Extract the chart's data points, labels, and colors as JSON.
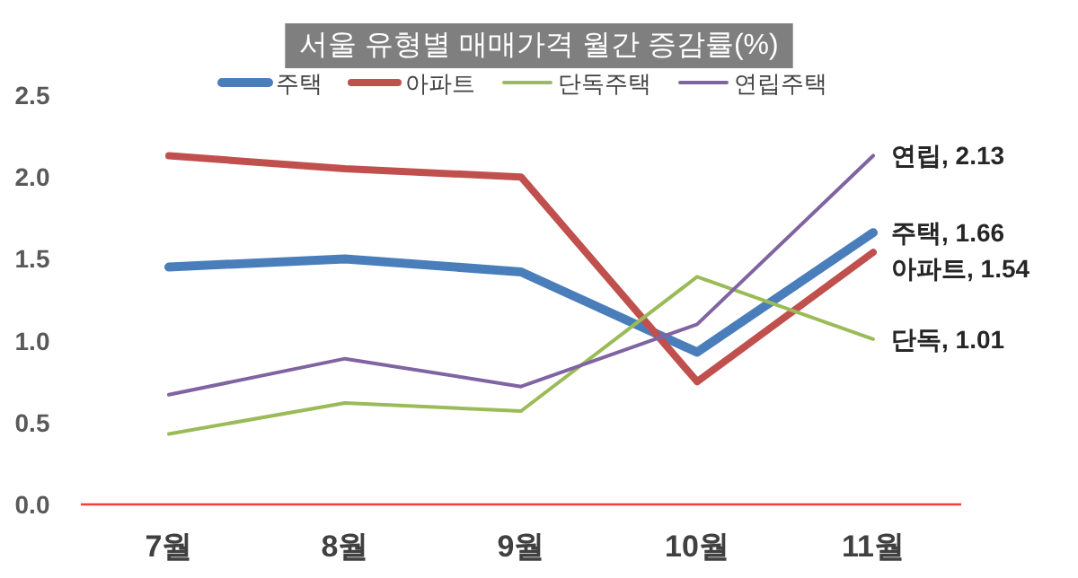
{
  "chart_data": {
    "type": "line",
    "title": "서울 유형별 매매가격 월간 증감률(%)",
    "categories": [
      "7월",
      "8월",
      "9월",
      "10월",
      "11월"
    ],
    "ylim": [
      0,
      2.5
    ],
    "yticks": [
      {
        "value": 0,
        "label": "0.0"
      },
      {
        "value": 0.5,
        "label": "0.5"
      },
      {
        "value": 1,
        "label": "1.0"
      },
      {
        "value": 1.5,
        "label": "1.5"
      },
      {
        "value": 2,
        "label": "2.0"
      },
      {
        "value": 2.5,
        "label": "2.5"
      }
    ],
    "grid": false,
    "legend": "top",
    "marker": "none",
    "series": [
      {
        "name": "주택",
        "color": "#4a7ebb",
        "values": [
          1.45,
          1.5,
          1.42,
          0.93,
          1.66
        ],
        "value_labels": [
          null,
          null,
          null,
          null,
          "주택, 1.66"
        ]
      },
      {
        "name": "아파트",
        "color": "#c0504d",
        "values": [
          2.13,
          2.05,
          2.0,
          0.75,
          1.54
        ],
        "value_labels": [
          null,
          null,
          null,
          null,
          "아파트, 1.54"
        ]
      },
      {
        "name": "단독주택",
        "color": "#9bbb59",
        "values": [
          0.43,
          0.62,
          0.57,
          1.39,
          1.01
        ],
        "value_labels": [
          null,
          null,
          null,
          null,
          "단독, 1.01"
        ]
      },
      {
        "name": "연립주택",
        "color": "#8064a2",
        "values": [
          0.67,
          0.89,
          0.72,
          1.1,
          2.13
        ],
        "value_labels": [
          null,
          null,
          null,
          null,
          "연립, 2.13"
        ]
      }
    ]
  }
}
